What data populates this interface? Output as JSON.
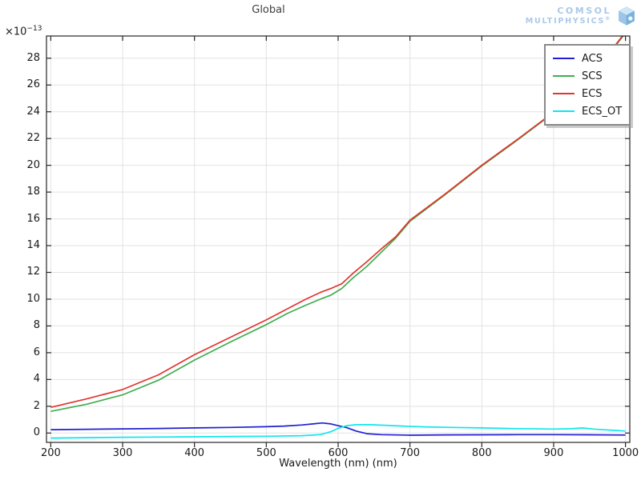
{
  "logo": {
    "line1": "COMSOL",
    "line2": "MULTIPHYSICS",
    "registered": "®",
    "text_color": "#a8cae9"
  },
  "chart_data": {
    "type": "line",
    "title": "Global",
    "xlabel": "Wavelength (nm) (nm)",
    "y_multiplier_base": "×10",
    "y_multiplier_exp": "−13",
    "xlim": [
      194,
      1006
    ],
    "ylim": [
      -0.7,
      29.66
    ],
    "x_ticks": [
      200,
      300,
      400,
      500,
      600,
      700,
      800,
      900,
      1000
    ],
    "y_ticks": [
      0,
      2,
      4,
      6,
      8,
      10,
      12,
      14,
      16,
      18,
      20,
      22,
      24,
      26,
      28
    ],
    "grid": true,
    "grid_color": "#e2e2e2",
    "axis_color": "#262626",
    "legend_position": "top-right",
    "series": [
      {
        "name": "ACS",
        "color": "#1f1fd3",
        "x": [
          200,
          250,
          300,
          350,
          400,
          450,
          500,
          525,
          550,
          565,
          578,
          590,
          600,
          612,
          625,
          640,
          660,
          700,
          750,
          800,
          850,
          900,
          950,
          1000
        ],
        "y": [
          0.25,
          0.28,
          0.31,
          0.34,
          0.38,
          0.42,
          0.47,
          0.52,
          0.6,
          0.68,
          0.75,
          0.68,
          0.55,
          0.4,
          0.15,
          -0.05,
          -0.12,
          -0.16,
          -0.14,
          -0.13,
          -0.12,
          -0.12,
          -0.13,
          -0.15
        ]
      },
      {
        "name": "SCS",
        "color": "#3fae4f",
        "x": [
          200,
          250,
          300,
          350,
          400,
          450,
          500,
          530,
          555,
          575,
          590,
          605,
          620,
          640,
          660,
          680,
          700,
          750,
          800,
          850,
          900,
          950,
          1000
        ],
        "y": [
          1.62,
          2.15,
          2.85,
          3.95,
          5.45,
          6.8,
          8.1,
          8.95,
          9.55,
          10.0,
          10.3,
          10.8,
          11.55,
          12.45,
          13.5,
          14.55,
          15.82,
          17.85,
          19.95,
          21.9,
          23.92,
          26.45,
          29.88
        ]
      },
      {
        "name": "ECS",
        "color": "#e1352f",
        "x": [
          200,
          250,
          300,
          350,
          400,
          450,
          500,
          530,
          555,
          575,
          590,
          605,
          620,
          640,
          660,
          680,
          700,
          750,
          800,
          850,
          900,
          950,
          1000
        ],
        "y": [
          1.92,
          2.55,
          3.25,
          4.35,
          5.85,
          7.15,
          8.45,
          9.3,
          10.0,
          10.5,
          10.8,
          11.15,
          11.9,
          12.8,
          13.75,
          14.65,
          15.9,
          17.9,
          20.0,
          21.95,
          23.97,
          26.5,
          29.95
        ]
      },
      {
        "name": "ECS_OT",
        "color": "#0ee6ee",
        "x": [
          200,
          250,
          300,
          350,
          400,
          450,
          500,
          550,
          575,
          590,
          600,
          612,
          625,
          645,
          665,
          690,
          720,
          760,
          800,
          850,
          900,
          925,
          940,
          955,
          1000
        ],
        "y": [
          -0.38,
          -0.35,
          -0.32,
          -0.3,
          -0.28,
          -0.26,
          -0.24,
          -0.2,
          -0.12,
          0.1,
          0.35,
          0.55,
          0.62,
          0.62,
          0.58,
          0.52,
          0.46,
          0.42,
          0.38,
          0.33,
          0.3,
          0.32,
          0.38,
          0.3,
          0.15
        ]
      }
    ]
  }
}
